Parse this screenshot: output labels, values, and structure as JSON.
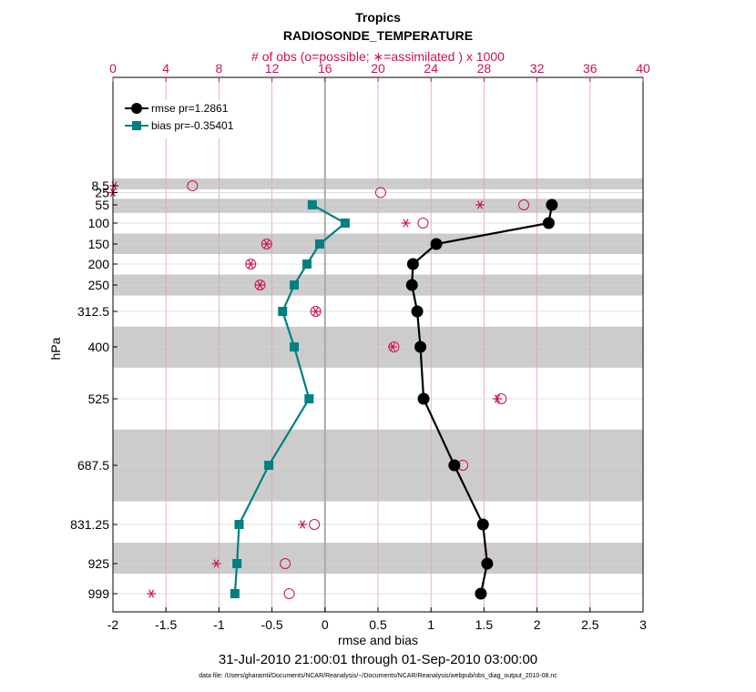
{
  "chart_data": {
    "type": "line",
    "title": "Tropics",
    "subtitle": "RADIOSONDE_TEMPERATURE",
    "top_axis_label": "# of obs (o=possible; ∗=assimilated ) x 1000",
    "xlabel": "rmse and bias",
    "ylabel": "hPa",
    "date_range": "31-Jul-2010 21:00:01 through 01-Sep-2010 03:00:00",
    "data_file": "data file: /Users/gharamti/Documents/NCAR/Reanalysis/~/Documents/NCAR/Reanalysis/webpub/obs_diag_output_2010-08.nc",
    "xlim": [
      -2,
      3
    ],
    "x_ticks": [
      "-2",
      "-1.5",
      "-1",
      "-0.5",
      "0",
      "0.5",
      "1",
      "1.5",
      "2",
      "2.5",
      "3"
    ],
    "x_tick_values": [
      -2,
      -1.5,
      -1,
      -0.5,
      0,
      0.5,
      1,
      1.5,
      2,
      2.5,
      3
    ],
    "top_xlim": [
      0,
      40
    ],
    "top_ticks": [
      "0",
      "4",
      "8",
      "12",
      "16",
      "20",
      "24",
      "28",
      "32",
      "36",
      "40"
    ],
    "top_tick_values": [
      0,
      4,
      8,
      12,
      16,
      20,
      24,
      28,
      32,
      36,
      40
    ],
    "levels": [
      "8.5",
      "25",
      "55",
      "100",
      "150",
      "200",
      "250",
      "312.5",
      "400",
      "525",
      "687.5",
      "831.25",
      "925",
      "999"
    ],
    "level_values": [
      8.5,
      25,
      55,
      100,
      150,
      200,
      250,
      312.5,
      400,
      525,
      687.5,
      831.25,
      925,
      999
    ],
    "band_edges": [
      [
        0,
        17
      ],
      [
        40,
        75
      ],
      [
        125,
        175
      ],
      [
        225,
        275
      ],
      [
        350,
        450
      ],
      [
        600,
        775
      ],
      [
        875,
        950
      ]
    ],
    "series": [
      {
        "name": "rmse pr=1.2861",
        "color": "#000000",
        "marker": "circle",
        "levels": [
          55,
          100,
          150,
          200,
          250,
          312.5,
          400,
          525,
          687.5,
          831.25,
          925,
          999
        ],
        "values": [
          2.14,
          2.11,
          1.05,
          0.83,
          0.82,
          0.87,
          0.9,
          0.93,
          1.22,
          1.49,
          1.53,
          1.47
        ]
      },
      {
        "name": "bias pr=-0.35401",
        "color": "#008080",
        "marker": "square",
        "levels": [
          55,
          100,
          150,
          200,
          250,
          312.5,
          400,
          525,
          687.5,
          831.25,
          925,
          999
        ],
        "values": [
          -0.12,
          0.19,
          -0.05,
          -0.17,
          -0.29,
          -0.4,
          -0.29,
          -0.15,
          -0.53,
          -0.81,
          -0.83,
          -0.85
        ]
      }
    ],
    "obs_possible": {
      "levels": [
        8.5,
        25,
        55,
        100,
        150,
        200,
        250,
        312.5,
        400,
        525,
        687.5,
        831.25,
        925,
        999
      ],
      "values": [
        6.0,
        20.2,
        31.0,
        23.4,
        11.6,
        10.4,
        11.1,
        15.3,
        21.2,
        29.3,
        26.4,
        15.2,
        13.0,
        13.3
      ]
    },
    "obs_assimilated": {
      "levels": [
        8.5,
        25,
        55,
        100,
        150,
        200,
        250,
        312.5,
        400,
        525,
        687.5,
        831.25,
        925,
        999
      ],
      "values": [
        0.1,
        0.0,
        27.7,
        22.1,
        11.6,
        10.4,
        11.1,
        15.3,
        21.1,
        29.0,
        25.7,
        14.3,
        7.8,
        2.9
      ]
    }
  }
}
